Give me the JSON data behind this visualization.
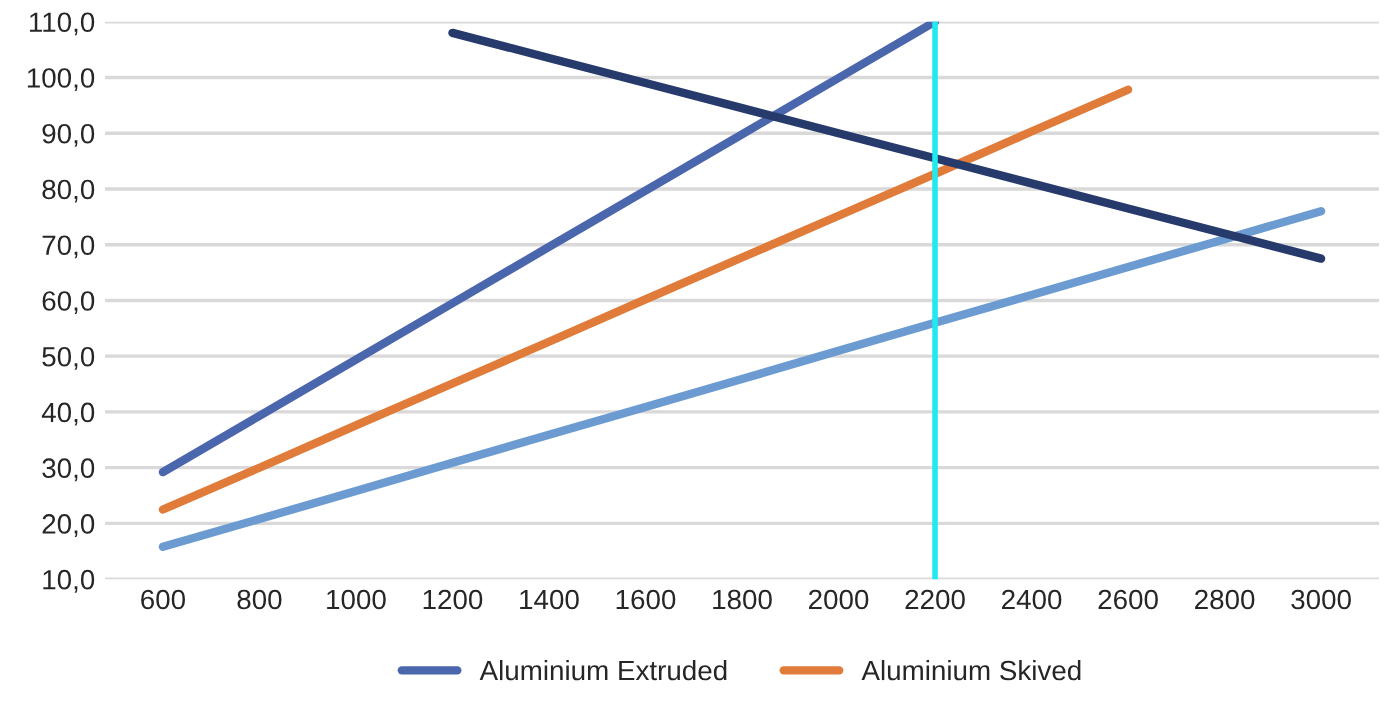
{
  "chart_data": {
    "type": "line",
    "categories": [
      "600",
      "800",
      "1000",
      "1200",
      "1400",
      "1600",
      "1800",
      "2000",
      "2200",
      "2400",
      "2600",
      "2800",
      "3000"
    ],
    "series": [
      {
        "name": "Aluminium Extruded",
        "color": "#4a66ac",
        "values": [
          29.2,
          39.3,
          49.4,
          59.5,
          69.6,
          79.7,
          89.8,
          99.9,
          110.0,
          null,
          null,
          null,
          null
        ]
      },
      {
        "name": "Aluminium Skived",
        "color": "#e07b39",
        "values": [
          22.5,
          30.0,
          37.6,
          45.1,
          52.6,
          60.2,
          67.7,
          75.2,
          82.7,
          90.3,
          97.8,
          null,
          null
        ]
      },
      {
        "color": "#6b9bd1",
        "values": [
          15.8,
          20.8,
          25.8,
          30.9,
          35.9,
          40.9,
          45.9,
          51.0,
          56.0,
          61.0,
          66.0,
          71.0,
          76.0
        ]
      },
      {
        "color": "#263a6b",
        "values": [
          null,
          null,
          null,
          108.0,
          103.5,
          99.0,
          94.5,
          90.0,
          85.5,
          81.0,
          76.5,
          72.0,
          67.5
        ]
      }
    ],
    "ylim": [
      10,
      110
    ],
    "yticks": [
      {
        "value": 10,
        "label": "10,0"
      },
      {
        "value": 20,
        "label": "20,0"
      },
      {
        "value": 30,
        "label": "30,0"
      },
      {
        "value": 40,
        "label": "40,0"
      },
      {
        "value": 50,
        "label": "50,0"
      },
      {
        "value": 60,
        "label": "60,0"
      },
      {
        "value": 70,
        "label": "70,0"
      },
      {
        "value": 80,
        "label": "80,0"
      },
      {
        "value": 90,
        "label": "90,0"
      },
      {
        "value": 100,
        "label": "100,0"
      },
      {
        "value": 110,
        "label": "110,0"
      }
    ],
    "ref_lines": [
      {
        "axis": "x",
        "value": "2200",
        "color": "#22e8f0"
      }
    ],
    "grid": "y",
    "legend": "bottom",
    "marker": "none",
    "line_style": "solid"
  }
}
